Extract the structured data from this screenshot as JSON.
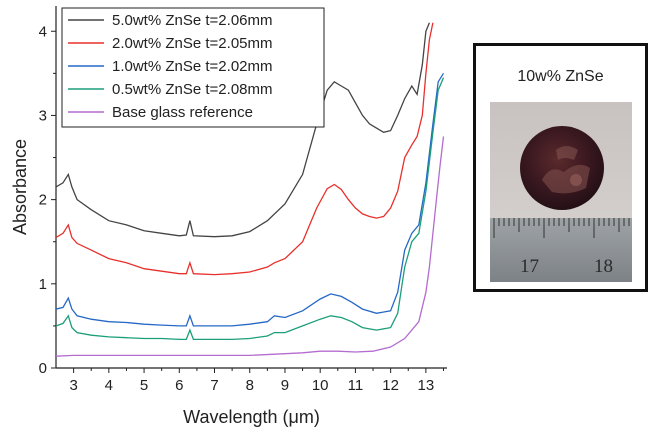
{
  "chart_data": {
    "type": "line",
    "title": "",
    "xlabel": "Wavelength (μm)",
    "ylabel": "Absorbance",
    "xlim": [
      2.5,
      13.6
    ],
    "ylim": [
      0,
      4.3
    ],
    "xticks": [
      3,
      4,
      5,
      6,
      7,
      8,
      9,
      10,
      11,
      12,
      13
    ],
    "yticks": [
      0,
      1,
      2,
      3,
      4
    ],
    "grid": false,
    "legend_position": "top-left",
    "series": [
      {
        "name": "5.0wt% ZnSe t=2.06mm",
        "color": "#444444",
        "x": [
          2.5,
          2.7,
          2.85,
          2.95,
          3.1,
          3.5,
          4.0,
          4.5,
          5.0,
          5.5,
          6.0,
          6.2,
          6.3,
          6.4,
          7.0,
          7.5,
          8.0,
          8.5,
          9.0,
          9.5,
          9.9,
          10.2,
          10.4,
          10.6,
          10.8,
          11.0,
          11.2,
          11.4,
          11.6,
          11.8,
          12.0,
          12.2,
          12.4,
          12.6,
          12.75,
          12.9,
          13.0,
          13.1
        ],
        "y": [
          2.15,
          2.2,
          2.3,
          2.15,
          2.0,
          1.88,
          1.75,
          1.7,
          1.63,
          1.6,
          1.57,
          1.58,
          1.75,
          1.57,
          1.56,
          1.57,
          1.62,
          1.75,
          1.95,
          2.3,
          2.9,
          3.3,
          3.4,
          3.35,
          3.3,
          3.15,
          3.0,
          2.9,
          2.85,
          2.8,
          2.82,
          3.0,
          3.2,
          3.35,
          3.25,
          3.6,
          4.0,
          4.1
        ]
      },
      {
        "name": "2.0wt% ZnSe t=2.05mm",
        "color": "#e8302c",
        "x": [
          2.5,
          2.7,
          2.85,
          2.95,
          3.1,
          3.5,
          4.0,
          4.5,
          5.0,
          5.5,
          6.0,
          6.2,
          6.3,
          6.4,
          7.0,
          7.5,
          8.0,
          8.5,
          8.7,
          9.0,
          9.5,
          9.9,
          10.2,
          10.4,
          10.6,
          10.8,
          11.0,
          11.2,
          11.4,
          11.6,
          11.8,
          12.0,
          12.2,
          12.4,
          12.6,
          12.75,
          12.9,
          13.0,
          13.1,
          13.2
        ],
        "y": [
          1.55,
          1.6,
          1.7,
          1.55,
          1.48,
          1.4,
          1.3,
          1.25,
          1.18,
          1.15,
          1.12,
          1.12,
          1.25,
          1.12,
          1.11,
          1.12,
          1.14,
          1.2,
          1.25,
          1.3,
          1.5,
          1.9,
          2.13,
          2.18,
          2.12,
          2.0,
          1.9,
          1.83,
          1.8,
          1.78,
          1.8,
          1.9,
          2.1,
          2.5,
          2.65,
          2.75,
          3.0,
          3.5,
          3.9,
          4.1
        ]
      },
      {
        "name": "1.0wt% ZnSe t=2.02mm",
        "color": "#2568c7",
        "x": [
          2.5,
          2.7,
          2.85,
          2.95,
          3.1,
          3.5,
          4.0,
          4.5,
          5.0,
          5.5,
          6.0,
          6.2,
          6.3,
          6.4,
          7.0,
          7.5,
          8.0,
          8.5,
          8.7,
          9.0,
          9.5,
          10.0,
          10.3,
          10.6,
          10.9,
          11.2,
          11.6,
          12.0,
          12.2,
          12.4,
          12.6,
          12.8,
          13.0,
          13.2,
          13.35,
          13.5
        ],
        "y": [
          0.7,
          0.72,
          0.83,
          0.7,
          0.62,
          0.58,
          0.55,
          0.54,
          0.52,
          0.51,
          0.5,
          0.5,
          0.62,
          0.5,
          0.5,
          0.5,
          0.52,
          0.55,
          0.62,
          0.6,
          0.68,
          0.82,
          0.88,
          0.85,
          0.78,
          0.7,
          0.65,
          0.68,
          0.9,
          1.4,
          1.6,
          1.7,
          2.2,
          2.9,
          3.4,
          3.5
        ]
      },
      {
        "name": "0.5wt% ZnSe t=2.08mm",
        "color": "#1c9e7a",
        "x": [
          2.5,
          2.7,
          2.85,
          2.95,
          3.1,
          3.5,
          4.0,
          4.5,
          5.0,
          5.5,
          6.0,
          6.2,
          6.3,
          6.4,
          7.0,
          7.5,
          8.0,
          8.5,
          8.7,
          9.0,
          9.5,
          10.0,
          10.3,
          10.6,
          10.9,
          11.2,
          11.6,
          12.0,
          12.2,
          12.4,
          12.6,
          12.8,
          13.0,
          13.2,
          13.35,
          13.5
        ],
        "y": [
          0.5,
          0.53,
          0.62,
          0.48,
          0.42,
          0.39,
          0.37,
          0.36,
          0.35,
          0.35,
          0.34,
          0.34,
          0.45,
          0.34,
          0.34,
          0.34,
          0.35,
          0.38,
          0.42,
          0.42,
          0.5,
          0.58,
          0.62,
          0.6,
          0.55,
          0.48,
          0.45,
          0.48,
          0.65,
          1.2,
          1.5,
          1.6,
          2.1,
          2.8,
          3.3,
          3.45
        ]
      },
      {
        "name": "Base glass reference",
        "color": "#b46ccf",
        "x": [
          2.5,
          3.0,
          4.0,
          5.0,
          6.0,
          7.0,
          8.0,
          9.0,
          9.5,
          10.0,
          10.5,
          11.0,
          11.5,
          12.0,
          12.4,
          12.8,
          13.0,
          13.1,
          13.2,
          13.3,
          13.4,
          13.5
        ],
        "y": [
          0.14,
          0.15,
          0.15,
          0.15,
          0.15,
          0.15,
          0.15,
          0.17,
          0.18,
          0.2,
          0.2,
          0.19,
          0.2,
          0.25,
          0.35,
          0.55,
          0.9,
          1.2,
          1.6,
          2.0,
          2.4,
          2.75
        ]
      }
    ]
  },
  "photo_panel": {
    "caption": "10w% ZnSe",
    "ruler_labels": [
      "17",
      "18"
    ]
  }
}
